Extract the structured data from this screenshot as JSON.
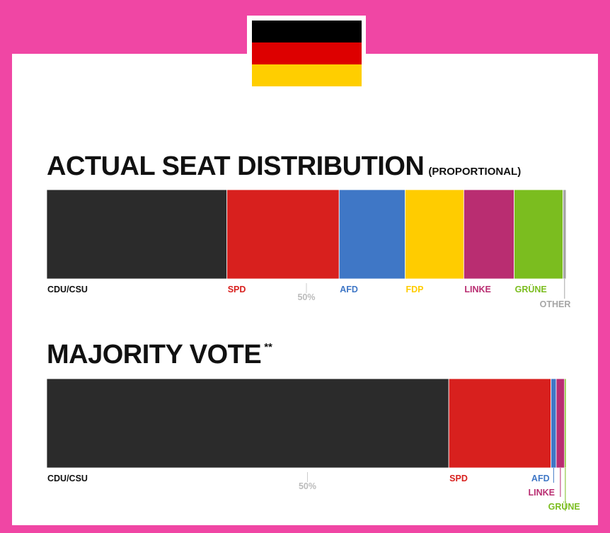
{
  "flag": {
    "name": "germany-flag",
    "colors": [
      "#000000",
      "#dd0000",
      "#ffce00"
    ]
  },
  "heading1": {
    "main": "ACTUAL SEAT DISTRIBUTION",
    "sub": "(PROPORTIONAL)"
  },
  "heading2": {
    "main": "MAJORITY VOTE",
    "sup": "**"
  },
  "chart_data": [
    {
      "type": "bar",
      "orientation": "horizontal-stacked",
      "title": "ACTUAL SEAT DISTRIBUTION (PROPORTIONAL)",
      "unit": "percent",
      "midline_label": "50%",
      "midline_value": 50,
      "series": [
        {
          "name": "CDU/CSU",
          "value": 34.7,
          "color": "#2b2b2b"
        },
        {
          "name": "SPD",
          "value": 21.6,
          "color": "#d8201e"
        },
        {
          "name": "AFD",
          "value": 12.7,
          "color": "#3f77c6"
        },
        {
          "name": "FDP",
          "value": 11.3,
          "color": "#ffcc00"
        },
        {
          "name": "LINKE",
          "value": 9.7,
          "color": "#b92d71"
        },
        {
          "name": "GRÜNE",
          "value": 9.4,
          "color": "#7bbd1f"
        },
        {
          "name": "OTHER",
          "value": 0.6,
          "color": "#a6a6a6"
        }
      ]
    },
    {
      "type": "bar",
      "orientation": "horizontal-stacked",
      "title": "MAJORITY VOTE **",
      "unit": "percent",
      "midline_label": "50%",
      "midline_value": 50,
      "series": [
        {
          "name": "CDU/CSU",
          "value": 77.1,
          "color": "#2b2b2b"
        },
        {
          "name": "SPD",
          "value": 19.6,
          "color": "#d8201e"
        },
        {
          "name": "AFD",
          "value": 1.0,
          "color": "#3f77c6"
        },
        {
          "name": "LINKE",
          "value": 1.6,
          "color": "#b92d71"
        },
        {
          "name": "GRÜNE",
          "value": 0.3,
          "color": "#7bbd1f"
        }
      ]
    }
  ]
}
